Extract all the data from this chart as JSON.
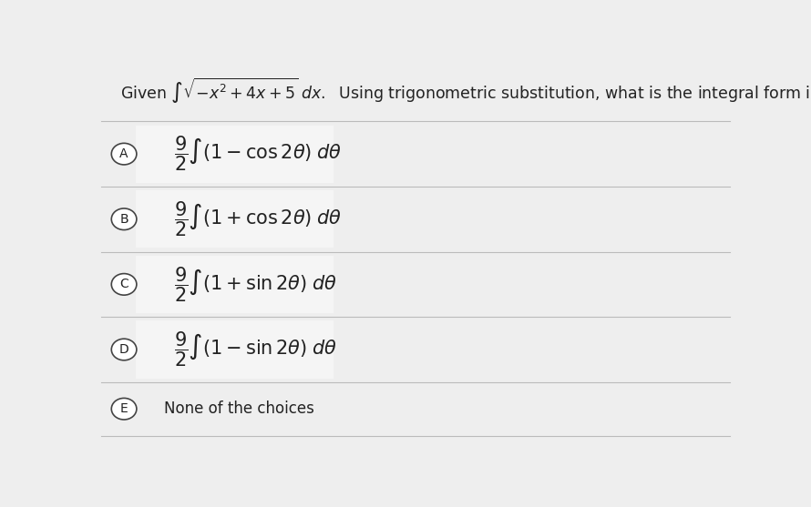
{
  "bg_color": "#eeeeee",
  "white_box_color": "#f5f5f5",
  "title_given": "Given ",
  "title_math": "$\\int \\sqrt{-x^2+4x+5}\\; dx.$",
  "title_rest": "  Using trigonometric substitution, what is the integral form in terms of $\\theta$ ?",
  "options": [
    {
      "label": "A",
      "expr": "$\\dfrac{9}{2}\\int (1 - \\cos 2\\theta)\\; d\\theta$"
    },
    {
      "label": "B",
      "expr": "$\\dfrac{9}{2}\\int (1 + \\cos 2\\theta)\\; d\\theta$"
    },
    {
      "label": "C",
      "expr": "$\\dfrac{9}{2}\\int (1 + \\sin 2\\theta)\\; d\\theta$"
    },
    {
      "label": "D",
      "expr": "$\\dfrac{9}{2}\\int (1 - \\sin 2\\theta)\\; d\\theta$"
    },
    {
      "label": "E",
      "expr": "None of the choices"
    }
  ],
  "figsize": [
    8.9,
    5.57
  ],
  "dpi": 100
}
